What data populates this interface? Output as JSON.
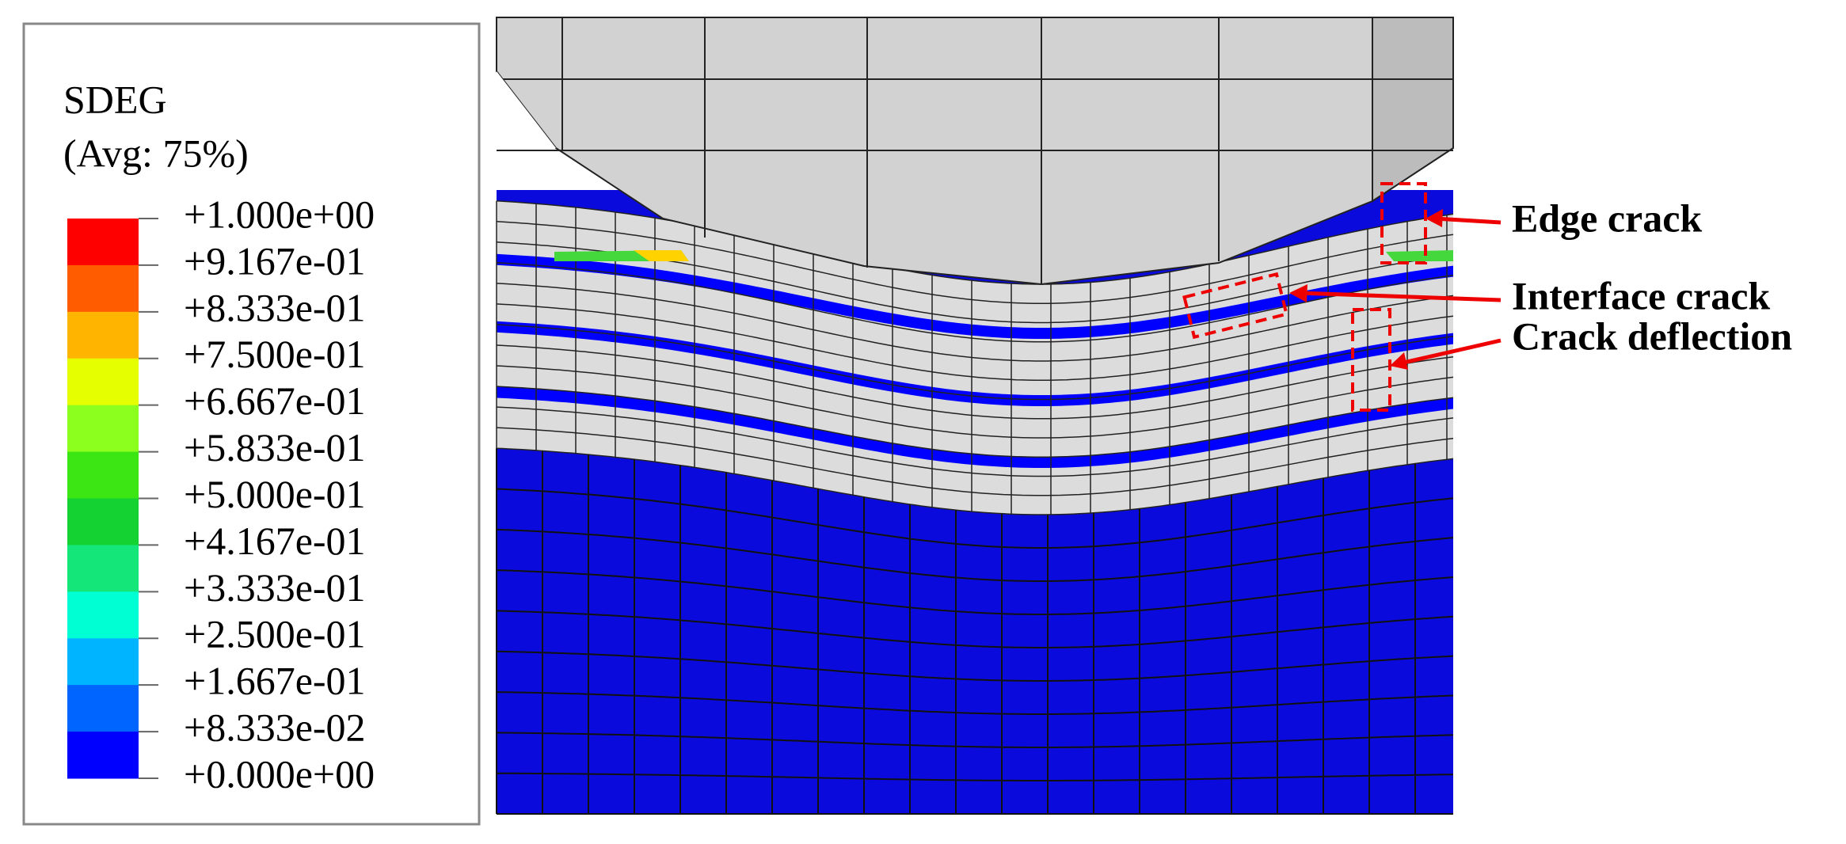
{
  "legend": {
    "title": "SDEG",
    "subtitle": "(Avg: 75%)",
    "labels": [
      "+1.000e+00",
      "+9.167e-01",
      "+8.333e-01",
      "+7.500e-01",
      "+6.667e-01",
      "+5.833e-01",
      "+5.000e-01",
      "+4.167e-01",
      "+3.333e-01",
      "+2.500e-01",
      "+1.667e-01",
      "+8.333e-02",
      "+0.000e+00"
    ],
    "colors": [
      "#ff0000",
      "#ff5c00",
      "#ffb400",
      "#e6ff00",
      "#8cff1e",
      "#3ce614",
      "#14d232",
      "#14e67a",
      "#00ffd2",
      "#00b4ff",
      "#0064ff",
      "#0000ff"
    ]
  },
  "annotations": [
    "Edge crack",
    "Interface crack",
    "Crack deflection"
  ]
}
